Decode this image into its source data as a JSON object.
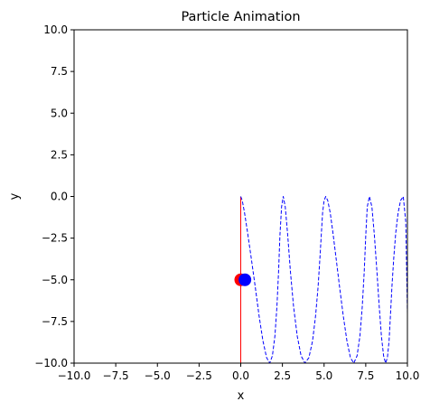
{
  "chart_data": {
    "type": "line",
    "title": "Particle Animation",
    "xlabel": "x",
    "ylabel": "y",
    "xlim": [
      -10,
      10
    ],
    "ylim": [
      -10,
      10
    ],
    "xticks": [
      "−10.0",
      "−7.5",
      "−5.0",
      "−2.5",
      "0.0",
      "2.5",
      "5.0",
      "7.5",
      "10.0"
    ],
    "yticks": [
      "−10.0",
      "−7.5",
      "−5.0",
      "−2.5",
      "0.0",
      "2.5",
      "5.0",
      "7.5",
      "10.0"
    ],
    "grid": false,
    "colors": {
      "red_series": "#ff0000",
      "blue_series": "#0000ff"
    },
    "series": [
      {
        "style": "solid",
        "color": "#ff0000",
        "x": [
          0,
          0
        ],
        "y": [
          0,
          -10
        ]
      },
      {
        "style": "dashed",
        "color": "#0000ff",
        "x": [
          0.0,
          0.09,
          0.23,
          0.41,
          0.63,
          0.87,
          1.1,
          1.33,
          1.55,
          1.74,
          1.9,
          2.05,
          2.17,
          2.27,
          2.35,
          2.45,
          2.55,
          2.67,
          2.82,
          2.98,
          3.17,
          3.39,
          3.62,
          3.85,
          4.09,
          4.31,
          4.49,
          4.64,
          4.75,
          4.84,
          4.91,
          5.0,
          5.1,
          5.22,
          5.37,
          5.53,
          5.72,
          5.93,
          6.15,
          6.37,
          6.58,
          6.78,
          6.98,
          7.15,
          7.29,
          7.41,
          7.5,
          7.59,
          7.72,
          7.87,
          8.02,
          8.17,
          8.31,
          8.44,
          8.57,
          8.69,
          8.8,
          8.9,
          8.98,
          9.07,
          9.18,
          9.3,
          9.44,
          9.59,
          9.75,
          9.9,
          10.0
        ],
        "y": [
          0.0,
          -0.24,
          -0.99,
          -2.17,
          -3.7,
          -5.43,
          -7.16,
          -8.66,
          -9.67,
          -10.0,
          -9.56,
          -8.38,
          -6.62,
          -4.5,
          -2.35,
          -0.62,
          0.0,
          -0.62,
          -2.35,
          -4.5,
          -6.62,
          -8.38,
          -9.56,
          -10.0,
          -9.67,
          -8.66,
          -7.16,
          -5.43,
          -3.7,
          -2.17,
          -0.99,
          -0.24,
          0.0,
          -0.24,
          -0.99,
          -2.17,
          -3.7,
          -5.43,
          -7.16,
          -8.66,
          -9.67,
          -10.0,
          -9.56,
          -8.38,
          -6.62,
          -4.5,
          -2.35,
          -0.62,
          0.0,
          -0.62,
          -2.35,
          -4.5,
          -6.62,
          -8.38,
          -9.56,
          -10.0,
          -9.67,
          -8.66,
          -7.16,
          -5.43,
          -3.7,
          -2.17,
          -0.99,
          -0.24,
          0.0,
          -1.5,
          -7.0
        ]
      }
    ],
    "markers": [
      {
        "color": "#ff0000",
        "x": 0.0,
        "y": -5.0
      },
      {
        "color": "#0000ff",
        "x": 0.25,
        "y": -5.0
      }
    ]
  }
}
